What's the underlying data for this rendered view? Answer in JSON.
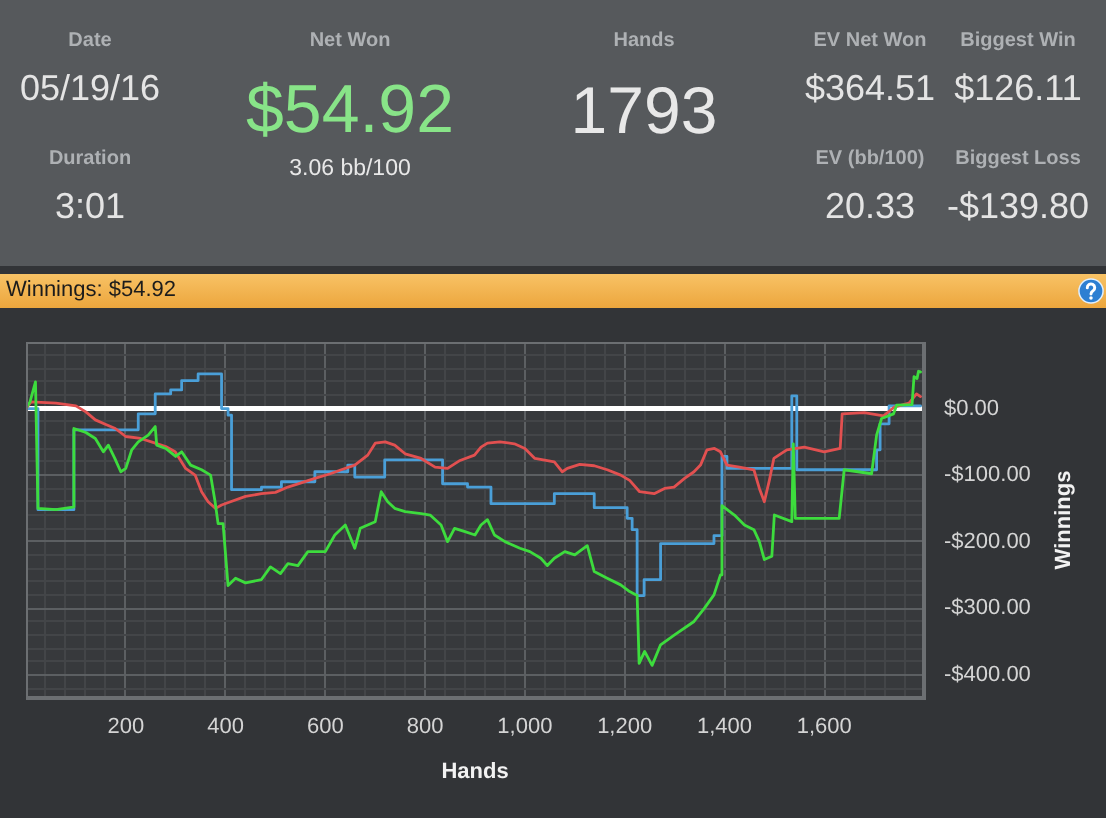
{
  "chart_data": [
    {
      "type": "other",
      "annotations": [
        "Date",
        "05/19/16",
        "Duration",
        "3:01",
        "Net Won",
        "$54.92",
        "3.06 bb/100",
        "Hands",
        "1793",
        "EV Net Won",
        "$364.51",
        "EV (bb/100)",
        "20.33",
        "Biggest Win",
        "$126.11",
        "Biggest Loss",
        "-$139.80"
      ]
    },
    {
      "type": "line",
      "title": "Winnings: $54.92",
      "xlabel": "Hands",
      "ylabel": "Winnings",
      "xlim": [
        0,
        1800
      ],
      "xticks": [
        {
          "value": 40,
          "label": null
        },
        {
          "value": 80,
          "label": null
        },
        {
          "value": 120,
          "label": null
        },
        {
          "value": 160,
          "label": null
        },
        200,
        {
          "value": 240,
          "label": null
        },
        {
          "value": 280,
          "label": null
        },
        {
          "value": 320,
          "label": null
        },
        {
          "value": 360,
          "label": null
        },
        400,
        {
          "value": 440,
          "label": null
        },
        {
          "value": 480,
          "label": null
        },
        {
          "value": 520,
          "label": null
        },
        {
          "value": 560,
          "label": null
        },
        600,
        {
          "value": 640,
          "label": null
        },
        {
          "value": 680,
          "label": null
        },
        {
          "value": 720,
          "label": null
        },
        {
          "value": 760,
          "label": null
        },
        800,
        {
          "value": 840,
          "label": null
        },
        {
          "value": 880,
          "label": null
        },
        {
          "value": 920,
          "label": null
        },
        {
          "value": 960,
          "label": null
        },
        {
          "value": 1000,
          "label": "1,000"
        },
        {
          "value": 1040,
          "label": null
        },
        {
          "value": 1080,
          "label": null
        },
        {
          "value": 1120,
          "label": null
        },
        {
          "value": 1160,
          "label": null
        },
        {
          "value": 1200,
          "label": "1,200"
        },
        {
          "value": 1240,
          "label": null
        },
        {
          "value": 1280,
          "label": null
        },
        {
          "value": 1320,
          "label": null
        },
        {
          "value": 1360,
          "label": null
        },
        {
          "value": 1400,
          "label": "1,400"
        },
        {
          "value": 1440,
          "label": null
        },
        {
          "value": 1480,
          "label": null
        },
        {
          "value": 1520,
          "label": null
        },
        {
          "value": 1560,
          "label": null
        },
        {
          "value": 1600,
          "label": "1,600"
        },
        {
          "value": 1640,
          "label": null
        },
        {
          "value": 1680,
          "label": null
        },
        {
          "value": 1720,
          "label": null
        },
        {
          "value": 1760,
          "label": null
        }
      ],
      "ylim": [
        -435,
        100
      ],
      "yticks": [
        {
          "value": 80,
          "label": null
        },
        {
          "value": 60,
          "label": null
        },
        {
          "value": 40,
          "label": null
        },
        {
          "value": 20,
          "label": null
        },
        {
          "value": 0,
          "label": "$0.00"
        },
        {
          "value": -20,
          "label": null
        },
        {
          "value": -40,
          "label": null
        },
        {
          "value": -60,
          "label": null
        },
        {
          "value": -80,
          "label": null
        },
        {
          "value": -100,
          "label": "-$100.00"
        },
        {
          "value": -120,
          "label": null
        },
        {
          "value": -140,
          "label": null
        },
        {
          "value": -160,
          "label": null
        },
        {
          "value": -180,
          "label": null
        },
        {
          "value": -200,
          "label": "-$200.00"
        },
        {
          "value": -220,
          "label": null
        },
        {
          "value": -240,
          "label": null
        },
        {
          "value": -260,
          "label": null
        },
        {
          "value": -280,
          "label": null
        },
        {
          "value": -300,
          "label": "-$300.00"
        },
        {
          "value": -320,
          "label": null
        },
        {
          "value": -340,
          "label": null
        },
        {
          "value": -360,
          "label": null
        },
        {
          "value": -380,
          "label": null
        },
        {
          "value": -400,
          "label": "-$400.00"
        },
        {
          "value": -420,
          "label": null
        }
      ],
      "grid": true,
      "legend": false,
      "marker": "none",
      "ref_lines": [
        {
          "axis": "y",
          "value": 0,
          "color": "#ffffff"
        }
      ],
      "series": [
        {
          "color": "#3ddc3d",
          "x": [
            0,
            8,
            19,
            24,
            60,
            94,
            96,
            120,
            139,
            155,
            165,
            178,
            190,
            200,
            212,
            225,
            245,
            259,
            262,
            280,
            300,
            312,
            330,
            352,
            370,
            379,
            385,
            395,
            405,
            420,
            440,
            472,
            490,
            510,
            525,
            545,
            565,
            600,
            619,
            640,
            659,
            670,
            700,
            712,
            725,
            739,
            760,
            792,
            810,
            832,
            845,
            859,
            880,
            900,
            912,
            925,
            939,
            960,
            990,
            1010,
            1032,
            1045,
            1059,
            1080,
            1100,
            1125,
            1139,
            1165,
            1192,
            1210,
            1225,
            1229,
            1240,
            1255,
            1272,
            1300,
            1339,
            1360,
            1379,
            1392,
            1395,
            1420,
            1440,
            1459,
            1470,
            1480,
            1495,
            1500,
            1535,
            1538,
            1542,
            1630,
            1640,
            1695,
            1705,
            1715,
            1739,
            1745,
            1776,
            1780,
            1786,
            1789,
            1793
          ],
          "values": [
            0,
            10,
            40,
            -150,
            -152,
            -148,
            -30,
            -36,
            -45,
            -65,
            -55,
            -75,
            -95,
            -90,
            -62,
            -50,
            -40,
            -27,
            -55,
            -60,
            -72,
            -65,
            -85,
            -92,
            -100,
            -140,
            -173,
            -173,
            -266,
            -255,
            -262,
            -257,
            -238,
            -248,
            -233,
            -236,
            -215,
            -215,
            -190,
            -175,
            -210,
            -180,
            -170,
            -125,
            -140,
            -150,
            -155,
            -158,
            -160,
            -175,
            -200,
            -180,
            -185,
            -190,
            -175,
            -167,
            -190,
            -200,
            -210,
            -215,
            -225,
            -236,
            -225,
            -215,
            -220,
            -206,
            -245,
            -255,
            -265,
            -275,
            -281,
            -383,
            -365,
            -386,
            -355,
            -340,
            -320,
            -300,
            -280,
            -250,
            -146,
            -160,
            -175,
            -182,
            -200,
            -227,
            -222,
            -160,
            -170,
            -53,
            -165,
            -165,
            -92,
            -98,
            -40,
            -15,
            -8,
            5,
            6,
            48,
            45,
            56,
            55
          ]
        },
        {
          "color": "#e25050",
          "x": [
            0,
            10,
            60,
            100,
            120,
            139,
            160,
            179,
            200,
            230,
            259,
            280,
            299,
            320,
            339,
            352,
            365,
            380,
            392,
            410,
            440,
            472,
            500,
            525,
            550,
            579,
            610,
            632,
            659,
            685,
            700,
            720,
            739,
            760,
            792,
            820,
            845,
            870,
            899,
            912,
            925,
            950,
            979,
            1000,
            1020,
            1059,
            1075,
            1085,
            1110,
            1139,
            1165,
            1192,
            1210,
            1230,
            1259,
            1280,
            1299,
            1320,
            1339,
            1352,
            1365,
            1380,
            1392,
            1405,
            1430,
            1459,
            1470,
            1480,
            1490,
            1499,
            1525,
            1560,
            1600,
            1632,
            1636,
            1680,
            1719,
            1740,
            1770,
            1785,
            1793
          ],
          "values": [
            0,
            10,
            8,
            4,
            -5,
            -17,
            -24,
            -30,
            -42,
            -45,
            -52,
            -57,
            -65,
            -90,
            -100,
            -125,
            -140,
            -150,
            -145,
            -140,
            -132,
            -128,
            -126,
            -118,
            -112,
            -105,
            -98,
            -92,
            -85,
            -70,
            -52,
            -50,
            -55,
            -68,
            -75,
            -88,
            -90,
            -78,
            -70,
            -58,
            -52,
            -50,
            -53,
            -60,
            -75,
            -80,
            -95,
            -90,
            -84,
            -86,
            -92,
            -100,
            -108,
            -125,
            -128,
            -120,
            -118,
            -105,
            -95,
            -85,
            -62,
            -60,
            -65,
            -85,
            -88,
            -92,
            -120,
            -140,
            -108,
            -75,
            -62,
            -58,
            -65,
            -60,
            -8,
            -6,
            -11,
            2,
            8,
            22,
            18
          ]
        },
        {
          "type": "step",
          "color": "#4a9fd8",
          "x": [
            0,
            24,
            96,
            225,
            259,
            290,
            312,
            345,
            392,
            405,
            412,
            472,
            512,
            579,
            645,
            659,
            719,
            835,
            885,
            932,
            1059,
            1139,
            1205,
            1215,
            1225,
            1239,
            1272,
            1379,
            1395,
            1405,
            1535,
            1545,
            1705,
            1712,
            1730,
            1793
          ],
          "values": [
            0,
            -152,
            -32,
            -8,
            22,
            28,
            42,
            52,
            0,
            -10,
            -122,
            -118,
            -110,
            -95,
            -85,
            -103,
            -77,
            -113,
            -118,
            -143,
            -128,
            -149,
            -165,
            -182,
            -281,
            -257,
            -203,
            -191,
            -72,
            -90,
            19,
            -92,
            -62,
            -23,
            4,
            4
          ]
        }
      ]
    }
  ]
}
